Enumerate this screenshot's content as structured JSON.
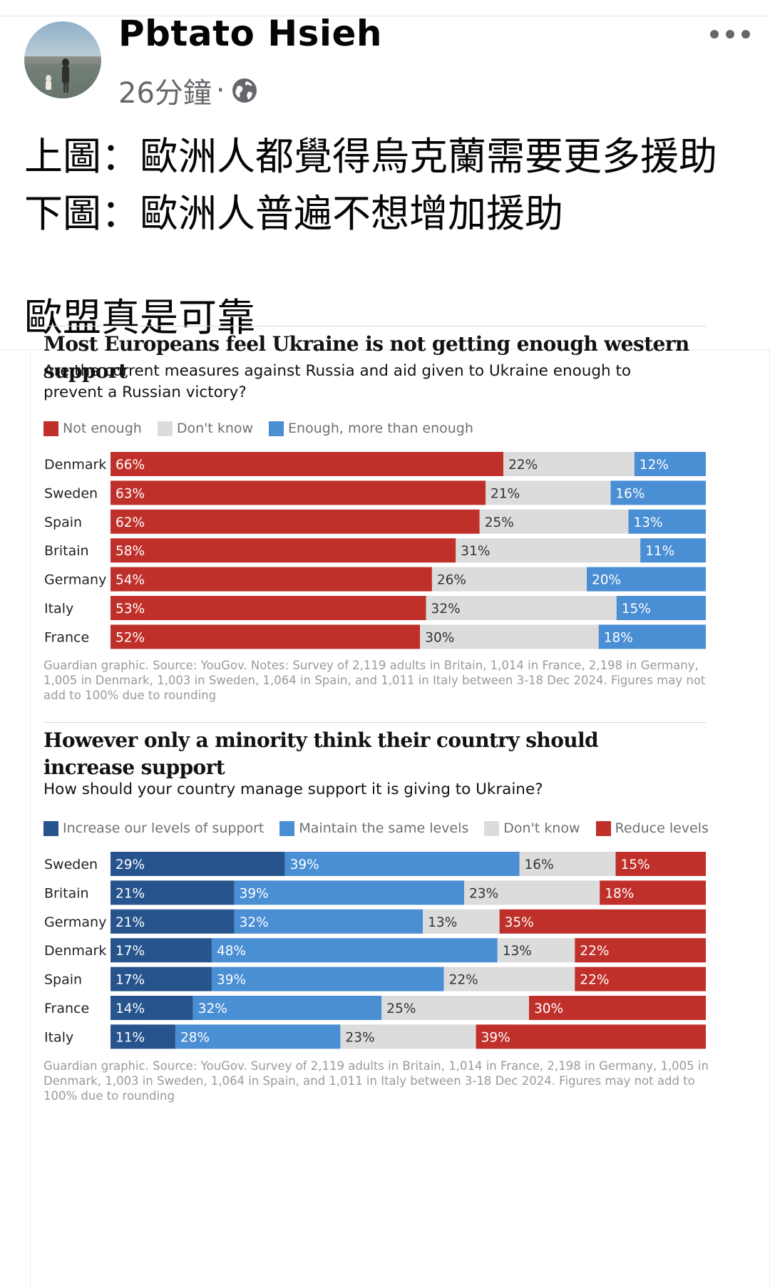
{
  "post": {
    "author": "Pbtato Hsieh",
    "time": "26分鐘",
    "separator": "·",
    "privacy_icon": "globe-icon",
    "more_icon": "more-dots-icon",
    "lines": [
      "上圖：歐洲人都覺得烏克蘭需要更多援助",
      "下圖：歐洲人普遍不想增加援助",
      "歐盟真是可靠"
    ]
  },
  "colors": {
    "red": "#c0302b",
    "light_gray": "#dcdcdc",
    "light_blue": "#4a8ed4",
    "dark_blue": "#27548c",
    "bar_text_white": "#ffffff",
    "bar_text_dark": "#333333"
  },
  "chart_data": [
    {
      "type": "bar",
      "orientation": "horizontal",
      "stacked": "100%",
      "title": "Most Europeans feel Ukraine is not getting enough western support",
      "subtitle": "Are the current measures against Russia and aid given to Ukraine enough to prevent a Russian victory?",
      "categories": [
        "Denmark",
        "Sweden",
        "Spain",
        "Britain",
        "Germany",
        "Italy",
        "France"
      ],
      "series": [
        {
          "name": "Not enough",
          "color": "#c0302b",
          "values": [
            66,
            63,
            62,
            58,
            54,
            53,
            52
          ]
        },
        {
          "name": "Don't know",
          "color": "#dcdcdc",
          "values": [
            22,
            21,
            25,
            31,
            26,
            32,
            30
          ]
        },
        {
          "name": "Enough, more than enough",
          "color": "#4a8ed4",
          "values": [
            12,
            16,
            13,
            11,
            20,
            15,
            18
          ]
        }
      ],
      "value_suffix": "%",
      "legend_position": "top-left",
      "note": "Guardian graphic. Source: YouGov. Notes: Survey of 2,119 adults in Britain, 1,014 in France, 2,198 in Germany, 1,005 in Denmark, 1,003 in Sweden, 1,064 in Spain, and 1,011 in Italy between 3-18 Dec 2024. Figures may not add to 100% due to rounding"
    },
    {
      "type": "bar",
      "orientation": "horizontal",
      "stacked": "100%",
      "title": "However only a minority think their country should increase support",
      "subtitle": "How should your country manage support it is giving to Ukraine?",
      "categories": [
        "Sweden",
        "Britain",
        "Germany",
        "Denmark",
        "Spain",
        "France",
        "Italy"
      ],
      "series": [
        {
          "name": "Increase our levels of support",
          "color": "#27548c",
          "values": [
            29,
            21,
            21,
            17,
            17,
            14,
            11
          ]
        },
        {
          "name": "Maintain the same levels",
          "color": "#4a8ed4",
          "values": [
            39,
            39,
            32,
            48,
            39,
            32,
            28
          ]
        },
        {
          "name": "Don't know",
          "color": "#dcdcdc",
          "values": [
            16,
            23,
            13,
            13,
            22,
            25,
            23
          ]
        },
        {
          "name": "Reduce levels",
          "color": "#c0302b",
          "values": [
            15,
            18,
            35,
            22,
            22,
            30,
            39
          ]
        }
      ],
      "value_suffix": "%",
      "legend_position": "top-left",
      "note": "Guardian graphic. Source: YouGov. Survey of 2,119 adults in Britain, 1,014 in France, 2,198 in Germany, 1,005 in Denmark, 1,003 in Sweden, 1,064 in Spain, and 1,011 in Italy between 3-18 Dec 2024. Figures may not add to 100% due to rounding"
    }
  ]
}
